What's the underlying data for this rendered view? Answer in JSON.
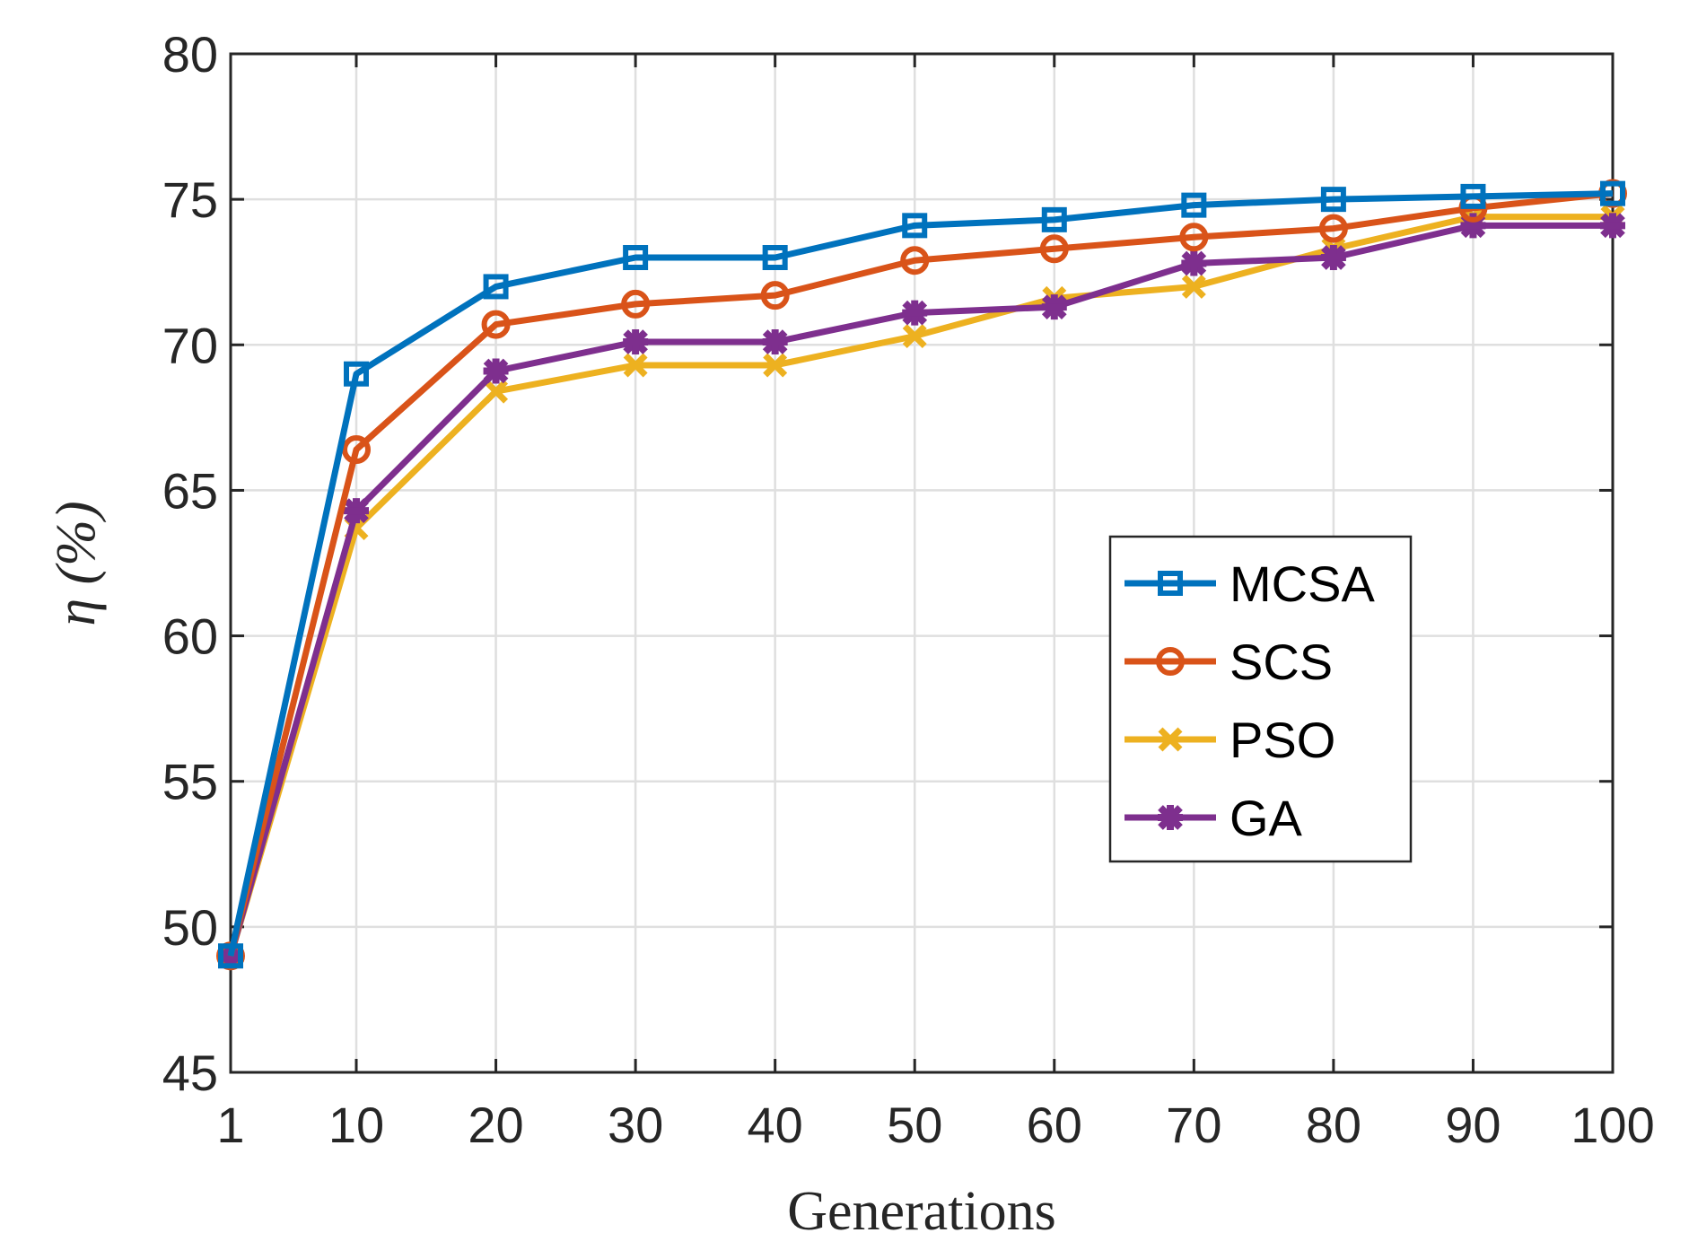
{
  "chart_data": {
    "type": "line",
    "title": "",
    "xlabel": "Generations",
    "ylabel": "η (%)",
    "x": [
      1,
      10,
      20,
      30,
      40,
      50,
      60,
      70,
      80,
      90,
      100
    ],
    "xticks": [
      "1",
      "10",
      "20",
      "30",
      "40",
      "50",
      "60",
      "70",
      "80",
      "90",
      "100"
    ],
    "yticks": [
      "45",
      "50",
      "55",
      "60",
      "65",
      "70",
      "75",
      "80"
    ],
    "xlim": [
      1,
      100
    ],
    "ylim": [
      45,
      80
    ],
    "grid": true,
    "legend_position": "center-right",
    "series": [
      {
        "name": "MCSA",
        "color": "#0072BD",
        "marker": "square",
        "values": [
          49,
          69,
          72,
          73,
          73,
          74.1,
          74.3,
          74.8,
          75,
          75.1,
          75.2
        ]
      },
      {
        "name": "SCS",
        "color": "#D95319",
        "marker": "circle",
        "values": [
          49,
          66.4,
          70.7,
          71.4,
          71.7,
          72.9,
          73.3,
          73.7,
          74,
          74.7,
          75.2
        ]
      },
      {
        "name": "PSO",
        "color": "#EDB120",
        "marker": "x",
        "values": [
          49,
          63.7,
          68.4,
          69.3,
          69.3,
          70.3,
          71.6,
          72,
          73.3,
          74.4,
          74.4
        ]
      },
      {
        "name": "GA",
        "color": "#7E2F8E",
        "marker": "asterisk",
        "values": [
          49,
          64.3,
          69.1,
          70.1,
          70.1,
          71.1,
          71.3,
          72.8,
          73,
          74.1,
          74.1
        ]
      }
    ]
  }
}
